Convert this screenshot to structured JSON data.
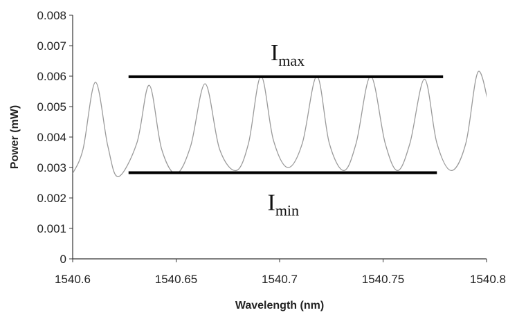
{
  "chart_data": {
    "type": "line",
    "xlabel": "Wavelength (nm)",
    "ylabel": "Power (mW)",
    "xlim": [
      1540.6,
      1540.8
    ],
    "ylim": [
      0,
      0.008
    ],
    "xticks": [
      "1540.6",
      "1540.65",
      "1540.7",
      "1540.75",
      "1540.8"
    ],
    "yticks": [
      "0",
      "0.001",
      "0.002",
      "0.003",
      "0.004",
      "0.005",
      "0.006",
      "0.007",
      "0.008"
    ],
    "grid": false,
    "colors": {
      "series": "#9a9a9a",
      "reference": "#000000"
    },
    "series": [
      {
        "x": [
          1540.6,
          1540.605,
          1540.611,
          1540.617,
          1540.622,
          1540.631,
          1540.637,
          1540.643,
          1540.65,
          1540.657,
          1540.664,
          1540.671,
          1540.679,
          1540.685,
          1540.691,
          1540.697,
          1540.704,
          1540.711,
          1540.718,
          1540.724,
          1540.731,
          1540.737,
          1540.744,
          1540.751,
          1540.757,
          1540.763,
          1540.77,
          1540.776,
          1540.783,
          1540.79,
          1540.796,
          1540.802
        ],
        "y": [
          0.0028,
          0.0036,
          0.0058,
          0.0037,
          0.0027,
          0.0038,
          0.0057,
          0.0036,
          0.0028,
          0.0037,
          0.00575,
          0.0036,
          0.0029,
          0.0038,
          0.006,
          0.0039,
          0.003,
          0.0038,
          0.006,
          0.0038,
          0.0029,
          0.0038,
          0.006,
          0.0038,
          0.0029,
          0.0038,
          0.0059,
          0.0038,
          0.0029,
          0.0038,
          0.00615,
          0.0047
        ]
      }
    ],
    "reference_lines": [
      {
        "label_main": "I",
        "label_sub": "max",
        "y": 0.00598,
        "x_start": 1540.627,
        "x_end": 1540.779
      },
      {
        "label_main": "I",
        "label_sub": "min",
        "y": 0.00283,
        "x_start": 1540.627,
        "x_end": 1540.776
      }
    ]
  }
}
